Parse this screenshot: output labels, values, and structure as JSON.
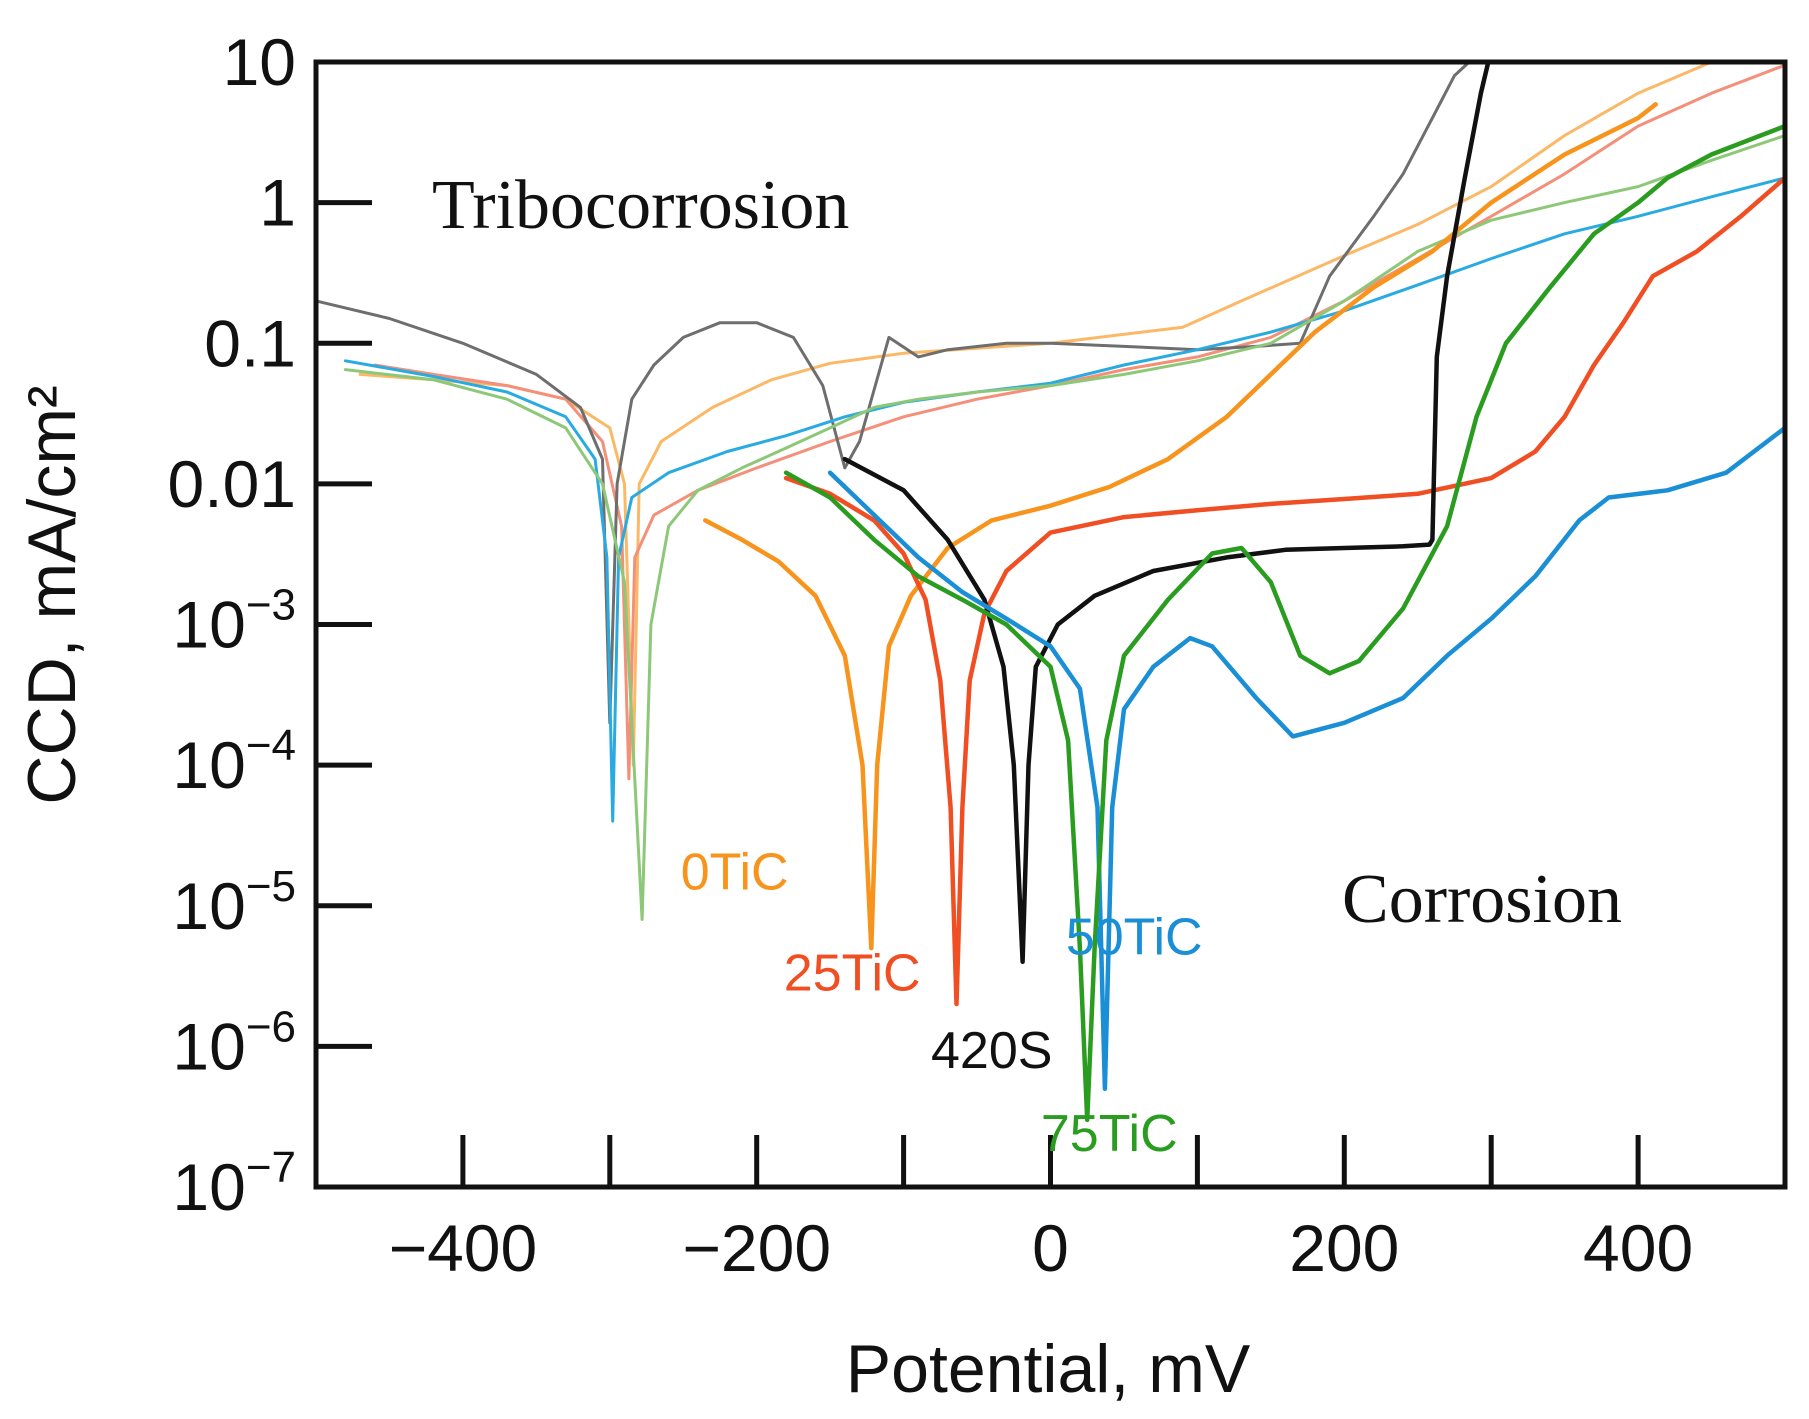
{
  "chart_data": {
    "type": "line",
    "xlabel": "Potential, mV",
    "ylabel": "CCD, mA/cm²",
    "xlim": [
      -500,
      500
    ],
    "ylim": [
      1e-07,
      10
    ],
    "yscale": "log",
    "x_ticks": [
      {
        "value": -400,
        "label": "−400"
      },
      {
        "value": -300,
        "label": ""
      },
      {
        "value": -200,
        "label": "−200"
      },
      {
        "value": -100,
        "label": ""
      },
      {
        "value": 0,
        "label": "0"
      },
      {
        "value": 100,
        "label": ""
      },
      {
        "value": 200,
        "label": "200"
      },
      {
        "value": 300,
        "label": ""
      },
      {
        "value": 400,
        "label": "400"
      }
    ],
    "y_ticks": [
      {
        "value": 10,
        "base": "10",
        "exp": ""
      },
      {
        "value": 1,
        "base": "1",
        "exp": ""
      },
      {
        "value": 0.1,
        "base": "0.1",
        "exp": ""
      },
      {
        "value": 0.01,
        "base": "0.01",
        "exp": ""
      },
      {
        "value": 0.001,
        "base": "10",
        "exp": "−3"
      },
      {
        "value": 0.0001,
        "base": "10",
        "exp": "−4"
      },
      {
        "value": 1e-05,
        "base": "10",
        "exp": "−5"
      },
      {
        "value": 1e-06,
        "base": "10",
        "exp": "−6"
      },
      {
        "value": 1e-07,
        "base": "10",
        "exp": "−7"
      }
    ],
    "annotations": {
      "tribocorrosion": "Tribocorrosion",
      "corrosion": "Corrosion"
    },
    "series": [
      {
        "name": "0TiC",
        "condition": "Corrosion",
        "color": "#F7941D",
        "label_x": -215,
        "label_y": 1.3e-05,
        "points": [
          [
            -235,
            0.0055
          ],
          [
            -210,
            0.004
          ],
          [
            -185,
            0.0028
          ],
          [
            -160,
            0.0016
          ],
          [
            -140,
            0.0006
          ],
          [
            -128,
            0.0001
          ],
          [
            -122,
            5e-06
          ],
          [
            -118,
            0.0001
          ],
          [
            -110,
            0.0007
          ],
          [
            -95,
            0.0016
          ],
          [
            -70,
            0.0035
          ],
          [
            -40,
            0.0055
          ],
          [
            0,
            0.007
          ],
          [
            40,
            0.0095
          ],
          [
            80,
            0.015
          ],
          [
            120,
            0.03
          ],
          [
            150,
            0.06
          ],
          [
            180,
            0.12
          ],
          [
            220,
            0.25
          ],
          [
            260,
            0.45
          ],
          [
            300,
            1.0
          ],
          [
            350,
            2.2
          ],
          [
            400,
            4.0
          ],
          [
            412,
            5.0
          ]
        ]
      },
      {
        "name": "25TiC",
        "condition": "Corrosion",
        "color": "#F04E23",
        "label_x": -135,
        "label_y": 2.5e-06,
        "points": [
          [
            -180,
            0.011
          ],
          [
            -150,
            0.0085
          ],
          [
            -120,
            0.0055
          ],
          [
            -100,
            0.0032
          ],
          [
            -85,
            0.0015
          ],
          [
            -75,
            0.0004
          ],
          [
            -68,
            5e-05
          ],
          [
            -64,
            2e-06
          ],
          [
            -60,
            5e-05
          ],
          [
            -55,
            0.0004
          ],
          [
            -45,
            0.0012
          ],
          [
            -30,
            0.0024
          ],
          [
            0,
            0.0045
          ],
          [
            50,
            0.0058
          ],
          [
            100,
            0.0065
          ],
          [
            150,
            0.0072
          ],
          [
            200,
            0.0078
          ],
          [
            250,
            0.0085
          ],
          [
            300,
            0.011
          ],
          [
            330,
            0.017
          ],
          [
            350,
            0.03
          ],
          [
            370,
            0.07
          ],
          [
            390,
            0.14
          ],
          [
            410,
            0.3
          ],
          [
            440,
            0.45
          ],
          [
            470,
            0.8
          ],
          [
            500,
            1.5
          ]
        ]
      },
      {
        "name": "420S",
        "condition": "Corrosion",
        "color": "#111111",
        "label_x": -40,
        "label_y": 7e-07,
        "points": [
          [
            -140,
            0.015
          ],
          [
            -100,
            0.009
          ],
          [
            -70,
            0.004
          ],
          [
            -45,
            0.0015
          ],
          [
            -32,
            0.0005
          ],
          [
            -25,
            0.0001
          ],
          [
            -19,
            4e-06
          ],
          [
            -15,
            0.0001
          ],
          [
            -10,
            0.0005
          ],
          [
            5,
            0.001
          ],
          [
            30,
            0.0016
          ],
          [
            70,
            0.0024
          ],
          [
            120,
            0.003
          ],
          [
            160,
            0.0034
          ],
          [
            200,
            0.0035
          ],
          [
            240,
            0.0036
          ],
          [
            258,
            0.0037
          ],
          [
            260,
            0.004
          ],
          [
            263,
            0.08
          ],
          [
            270,
            0.3
          ],
          [
            282,
            1.5
          ],
          [
            293,
            6.0
          ],
          [
            298,
            10.0
          ]
        ]
      },
      {
        "name": "50TiC",
        "condition": "Corrosion",
        "color": "#1A8FD6",
        "label_x": 57,
        "label_y": 4.5e-06,
        "points": [
          [
            -150,
            0.012
          ],
          [
            -120,
            0.006
          ],
          [
            -90,
            0.003
          ],
          [
            -60,
            0.0017
          ],
          [
            -30,
            0.0011
          ],
          [
            0,
            0.0007
          ],
          [
            20,
            0.00035
          ],
          [
            32,
            5e-05
          ],
          [
            37,
            5e-07
          ],
          [
            42,
            5e-05
          ],
          [
            50,
            0.00025
          ],
          [
            70,
            0.0005
          ],
          [
            95,
            0.0008
          ],
          [
            110,
            0.0007
          ],
          [
            140,
            0.0003
          ],
          [
            165,
            0.00016
          ],
          [
            200,
            0.0002
          ],
          [
            240,
            0.0003
          ],
          [
            270,
            0.0006
          ],
          [
            300,
            0.0011
          ],
          [
            330,
            0.0022
          ],
          [
            360,
            0.0055
          ],
          [
            380,
            0.008
          ],
          [
            420,
            0.009
          ],
          [
            460,
            0.012
          ],
          [
            500,
            0.025
          ]
        ]
      },
      {
        "name": "75TiC",
        "condition": "Corrosion",
        "color": "#2A9D20",
        "label_x": 40,
        "label_y": 1.8e-07,
        "points": [
          [
            -180,
            0.012
          ],
          [
            -150,
            0.008
          ],
          [
            -120,
            0.004
          ],
          [
            -90,
            0.0022
          ],
          [
            -60,
            0.0015
          ],
          [
            -30,
            0.001
          ],
          [
            0,
            0.0005
          ],
          [
            12,
            0.00015
          ],
          [
            20,
            5e-06
          ],
          [
            25,
            3e-07
          ],
          [
            30,
            5e-06
          ],
          [
            38,
            0.00015
          ],
          [
            50,
            0.0006
          ],
          [
            80,
            0.0015
          ],
          [
            110,
            0.0032
          ],
          [
            130,
            0.0035
          ],
          [
            150,
            0.002
          ],
          [
            170,
            0.0006
          ],
          [
            190,
            0.00045
          ],
          [
            210,
            0.00055
          ],
          [
            240,
            0.0013
          ],
          [
            270,
            0.005
          ],
          [
            290,
            0.03
          ],
          [
            310,
            0.1
          ],
          [
            340,
            0.25
          ],
          [
            370,
            0.6
          ],
          [
            400,
            1.0
          ],
          [
            420,
            1.5
          ],
          [
            450,
            2.2
          ],
          [
            500,
            3.5
          ]
        ]
      },
      {
        "name": "0TiC",
        "condition": "Tribocorrosion",
        "color": "#FBB866",
        "points": [
          [
            -470,
            0.06
          ],
          [
            -420,
            0.055
          ],
          [
            -370,
            0.05
          ],
          [
            -330,
            0.04
          ],
          [
            -300,
            0.025
          ],
          [
            -290,
            0.01
          ],
          [
            -284,
            0.0001
          ],
          [
            -280,
            0.01
          ],
          [
            -265,
            0.02
          ],
          [
            -230,
            0.035
          ],
          [
            -190,
            0.055
          ],
          [
            -150,
            0.072
          ],
          [
            -100,
            0.085
          ],
          [
            0,
            0.1
          ],
          [
            90,
            0.13
          ],
          [
            130,
            0.2
          ],
          [
            200,
            0.42
          ],
          [
            250,
            0.7
          ],
          [
            300,
            1.3
          ],
          [
            350,
            3.0
          ],
          [
            400,
            6.0
          ],
          [
            450,
            10.0
          ]
        ]
      },
      {
        "name": "25TiC",
        "condition": "Tribocorrosion",
        "color": "#F4907A",
        "points": [
          [
            -460,
            0.07
          ],
          [
            -420,
            0.06
          ],
          [
            -370,
            0.05
          ],
          [
            -330,
            0.04
          ],
          [
            -305,
            0.02
          ],
          [
            -292,
            0.005
          ],
          [
            -287,
            8e-05
          ],
          [
            -283,
            0.003
          ],
          [
            -270,
            0.006
          ],
          [
            -240,
            0.009
          ],
          [
            -200,
            0.013
          ],
          [
            -150,
            0.02
          ],
          [
            -100,
            0.03
          ],
          [
            -50,
            0.04
          ],
          [
            0,
            0.05
          ],
          [
            50,
            0.065
          ],
          [
            100,
            0.08
          ],
          [
            150,
            0.11
          ],
          [
            200,
            0.2
          ],
          [
            250,
            0.4
          ],
          [
            300,
            0.8
          ],
          [
            350,
            1.6
          ],
          [
            400,
            3.5
          ],
          [
            450,
            6.0
          ],
          [
            500,
            9.5
          ]
        ]
      },
      {
        "name": "420S",
        "condition": "Tribocorrosion",
        "color": "#6E6E6E",
        "points": [
          [
            -500,
            0.2
          ],
          [
            -450,
            0.15
          ],
          [
            -400,
            0.1
          ],
          [
            -350,
            0.06
          ],
          [
            -320,
            0.035
          ],
          [
            -305,
            0.015
          ],
          [
            -300,
            0.0002
          ],
          [
            -295,
            0.01
          ],
          [
            -285,
            0.04
          ],
          [
            -270,
            0.07
          ],
          [
            -250,
            0.11
          ],
          [
            -225,
            0.14
          ],
          [
            -200,
            0.14
          ],
          [
            -175,
            0.11
          ],
          [
            -155,
            0.05
          ],
          [
            -140,
            0.013
          ],
          [
            -130,
            0.02
          ],
          [
            -110,
            0.11
          ],
          [
            -90,
            0.08
          ],
          [
            -70,
            0.09
          ],
          [
            -30,
            0.1
          ],
          [
            0,
            0.1
          ],
          [
            50,
            0.095
          ],
          [
            100,
            0.09
          ],
          [
            140,
            0.095
          ],
          [
            170,
            0.1
          ],
          [
            190,
            0.3
          ],
          [
            220,
            0.8
          ],
          [
            240,
            1.6
          ],
          [
            260,
            4.0
          ],
          [
            275,
            8.0
          ],
          [
            285,
            10.0
          ]
        ]
      },
      {
        "name": "50TiC",
        "condition": "Tribocorrosion",
        "color": "#29ABE2",
        "points": [
          [
            -480,
            0.075
          ],
          [
            -420,
            0.058
          ],
          [
            -370,
            0.045
          ],
          [
            -330,
            0.03
          ],
          [
            -310,
            0.015
          ],
          [
            -302,
            0.003
          ],
          [
            -298,
            4e-05
          ],
          [
            -294,
            0.003
          ],
          [
            -285,
            0.008
          ],
          [
            -260,
            0.012
          ],
          [
            -220,
            0.017
          ],
          [
            -180,
            0.022
          ],
          [
            -140,
            0.03
          ],
          [
            -100,
            0.038
          ],
          [
            -50,
            0.045
          ],
          [
            0,
            0.052
          ],
          [
            50,
            0.07
          ],
          [
            100,
            0.09
          ],
          [
            150,
            0.12
          ],
          [
            200,
            0.17
          ],
          [
            250,
            0.26
          ],
          [
            300,
            0.4
          ],
          [
            350,
            0.6
          ],
          [
            400,
            0.8
          ],
          [
            450,
            1.1
          ],
          [
            500,
            1.5
          ]
        ]
      },
      {
        "name": "75TiC",
        "condition": "Tribocorrosion",
        "color": "#8DC878",
        "points": [
          [
            -480,
            0.065
          ],
          [
            -420,
            0.055
          ],
          [
            -370,
            0.04
          ],
          [
            -330,
            0.025
          ],
          [
            -305,
            0.01
          ],
          [
            -290,
            0.002
          ],
          [
            -278,
            8e-06
          ],
          [
            -272,
            0.001
          ],
          [
            -260,
            0.005
          ],
          [
            -240,
            0.009
          ],
          [
            -210,
            0.013
          ],
          [
            -180,
            0.018
          ],
          [
            -150,
            0.025
          ],
          [
            -120,
            0.035
          ],
          [
            -90,
            0.04
          ],
          [
            -50,
            0.045
          ],
          [
            0,
            0.05
          ],
          [
            50,
            0.06
          ],
          [
            100,
            0.075
          ],
          [
            150,
            0.1
          ],
          [
            200,
            0.2
          ],
          [
            250,
            0.45
          ],
          [
            300,
            0.75
          ],
          [
            350,
            1.0
          ],
          [
            400,
            1.3
          ],
          [
            450,
            2.0
          ],
          [
            500,
            3.0
          ]
        ]
      }
    ]
  }
}
